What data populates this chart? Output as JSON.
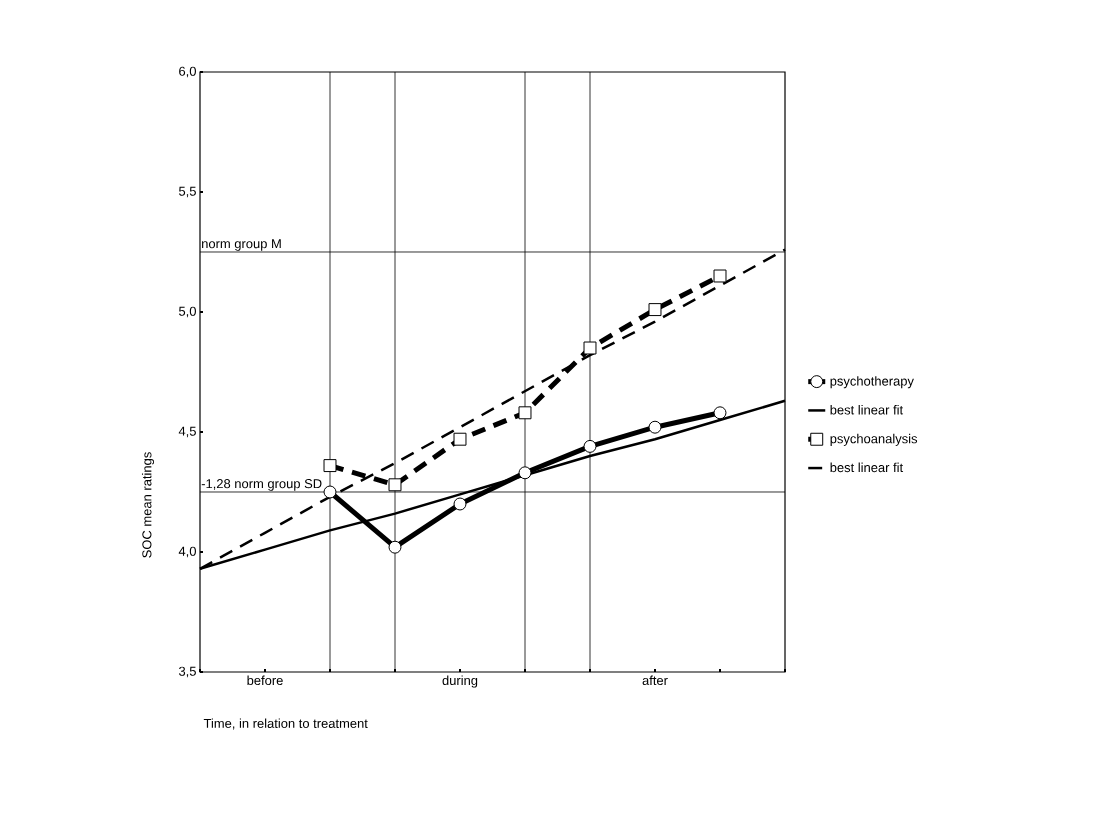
{
  "chart_data": {
    "type": "line",
    "xlabel": "Time, in relation to treatment",
    "ylabel": "SOC mean ratings",
    "categories": [
      null,
      "before",
      null,
      null,
      "during",
      null,
      null,
      "after",
      null,
      null
    ],
    "ylim": [
      3.5,
      6.0
    ],
    "yticks": [
      {
        "value": 3.5,
        "label": "3,5"
      },
      {
        "value": 4.0,
        "label": "4,0"
      },
      {
        "value": 4.5,
        "label": "4,5"
      },
      {
        "value": 5.0,
        "label": "5,0"
      },
      {
        "value": 5.5,
        "label": "5,5"
      },
      {
        "value": 6.0,
        "label": "6,0"
      }
    ],
    "legend": "right",
    "grid": "x",
    "ref_lines": [
      {
        "axis": "y",
        "value": 5.25,
        "label": "norm group M"
      },
      {
        "axis": "y",
        "value": 4.25,
        "label": "-1,28 norm group SD"
      }
    ],
    "series": [
      {
        "name": "psychotherapy",
        "color": "#000000",
        "marker": "circle",
        "line_style": "solid",
        "values": [
          null,
          null,
          4.25,
          4.02,
          4.2,
          4.33,
          4.44,
          4.52,
          4.58,
          null
        ]
      },
      {
        "name": "best linear fit",
        "color": "#000000",
        "marker": "none",
        "line_style": "solid",
        "values": [
          3.93,
          4.01,
          4.09,
          4.16,
          4.24,
          4.32,
          4.4,
          4.47,
          4.55,
          4.63
        ]
      },
      {
        "name": "psychoanalysis",
        "color": "#000000",
        "marker": "square",
        "line_style": "dashed",
        "values": [
          null,
          null,
          4.36,
          4.28,
          4.47,
          4.58,
          4.85,
          5.01,
          5.15,
          null
        ]
      },
      {
        "name": "best linear fit",
        "color": "#000000",
        "marker": "none",
        "line_style": "dashed",
        "values": [
          3.93,
          4.08,
          4.23,
          4.37,
          4.52,
          4.67,
          4.82,
          4.96,
          5.11,
          5.26
        ]
      }
    ]
  }
}
